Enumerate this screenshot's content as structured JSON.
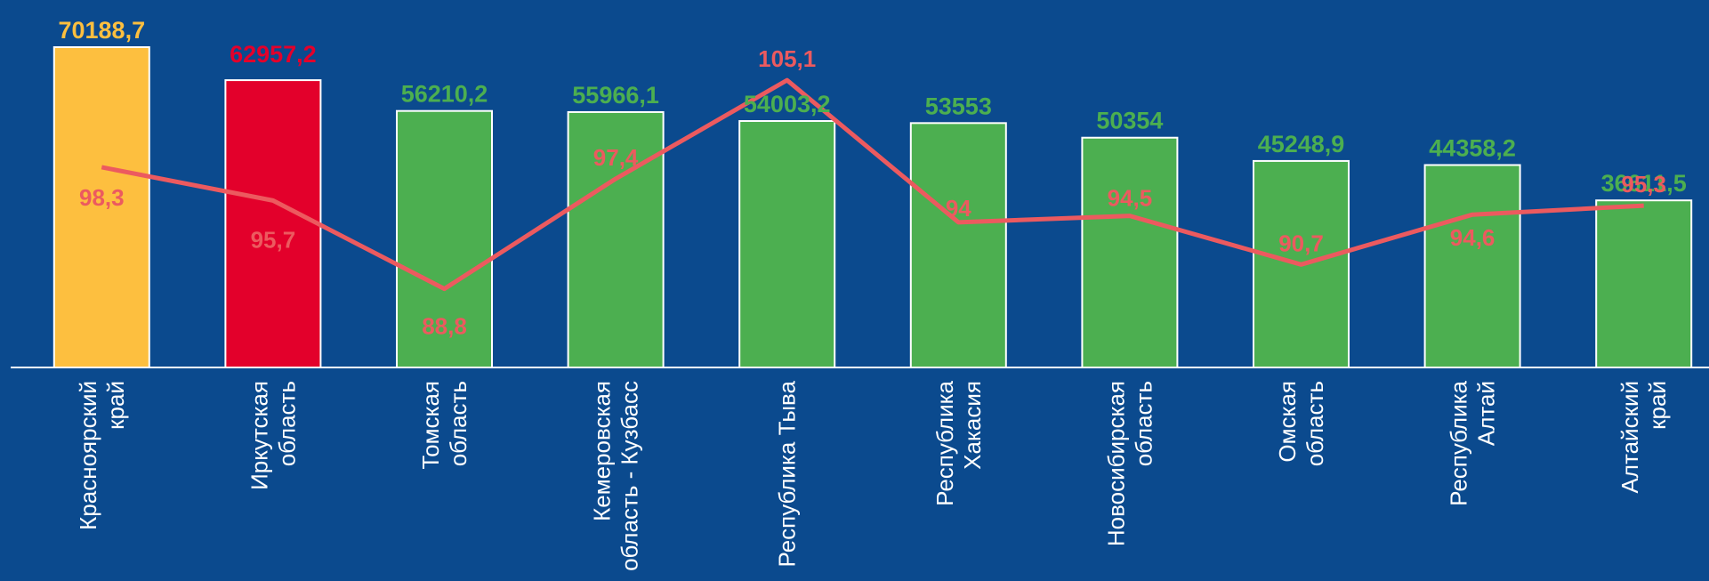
{
  "chart_data": {
    "type": "bar",
    "categories": [
      [
        "Красноярский",
        "край"
      ],
      [
        "Иркутская",
        "область"
      ],
      [
        "Томская",
        "область"
      ],
      [
        "Кемеровская",
        "область - Кузбасс"
      ],
      [
        "Республика Тыва"
      ],
      [
        "Республика",
        "Хакасия"
      ],
      [
        "Новосибирская",
        "область"
      ],
      [
        "Омская",
        "область"
      ],
      [
        "Республика",
        "Алтай"
      ],
      [
        "Алтайский",
        "край"
      ]
    ],
    "series": [
      {
        "type": "bar",
        "values": [
          70188.7,
          62957.2,
          56210.2,
          55966.1,
          54003.2,
          53553,
          50354,
          45248.9,
          44358.2,
          36611.5
        ],
        "labels": [
          "70188,7",
          "62957,2",
          "56210,2",
          "55966,1",
          "54003,2",
          "53553",
          "50354",
          "45248,9",
          "44358,2",
          "36611,5"
        ]
      },
      {
        "type": "line",
        "values": [
          98.3,
          95.7,
          88.8,
          97.4,
          105.1,
          94,
          94.5,
          90.7,
          94.6,
          95.3
        ],
        "labels": [
          "98,3",
          "95,7",
          "88,8",
          "97,4",
          "105,1",
          "94",
          "94,5",
          "90,7",
          "94,6",
          "95,3"
        ]
      }
    ],
    "ylim_bars": [
      0,
      72000
    ],
    "ylim_line": [
      78,
      106.5
    ],
    "grid": false,
    "legend": "none",
    "colors": {
      "background": "#0b4a8e",
      "bar_default": "#4caf50",
      "bar_highlight_1": "#fdbf3f",
      "bar_highlight_2": "#e3002b",
      "line": "#ec5a5f",
      "label_green": "#4caf50",
      "label_yellow": "#fdbf3f",
      "label_red": "#e3002b",
      "line_label": "#ec5a5f",
      "axis": "#ffffff"
    },
    "bar_colors": [
      "#fdbf3f",
      "#e3002b",
      "#4caf50",
      "#4caf50",
      "#4caf50",
      "#4caf50",
      "#4caf50",
      "#4caf50",
      "#4caf50",
      "#4caf50"
    ],
    "bar_label_colors": [
      "#fdbf3f",
      "#e3002b",
      "#4caf50",
      "#4caf50",
      "#4caf50",
      "#4caf50",
      "#4caf50",
      "#4caf50",
      "#4caf50",
      "#4caf50"
    ]
  }
}
